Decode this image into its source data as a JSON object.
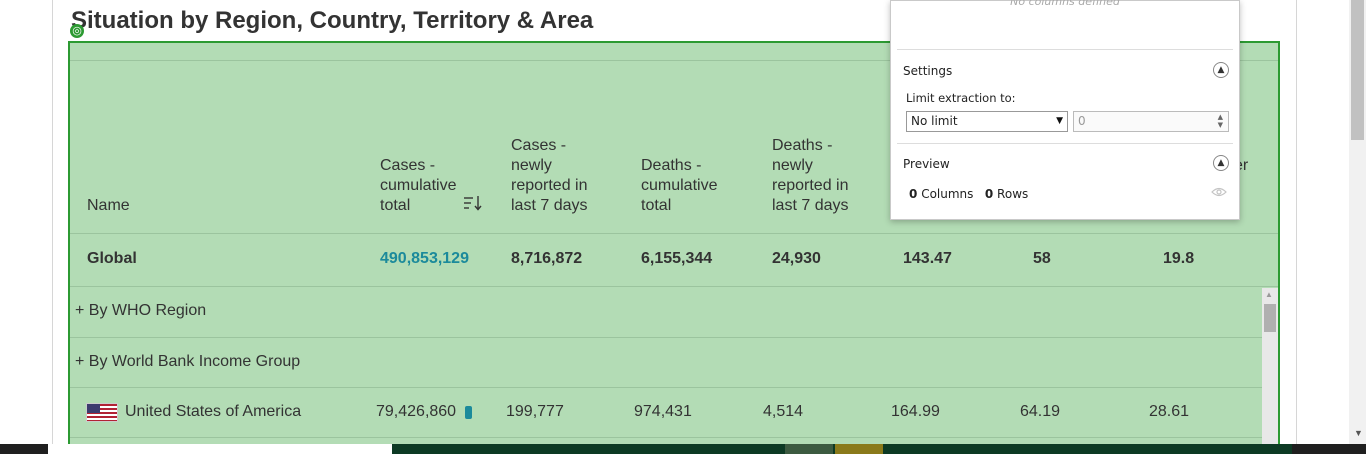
{
  "section_title": "Situation by Region, Country, Territory & Area",
  "table": {
    "columns": [
      {
        "label": "Name"
      },
      {
        "label": "Cases - cumulative total"
      },
      {
        "label": "Cases - newly reported in last 7 days"
      },
      {
        "label": "Deaths - cumulative total"
      },
      {
        "label": "Deaths - newly reported in last 7 days"
      },
      {
        "label": "er"
      }
    ],
    "global": {
      "name": "Global",
      "cases_total": "490,853,129",
      "cases_7d": "8,716,872",
      "deaths_total": "6,155,344",
      "deaths_7d": "24,930",
      "col6": "143.47",
      "col7": "58",
      "col8": "19.8"
    },
    "groups": [
      {
        "label": "+ By WHO Region"
      },
      {
        "label": "+ By World Bank Income Group"
      }
    ],
    "rows": [
      {
        "name": "United States of America",
        "cases_total": "79,426,860",
        "cases_7d": "199,777",
        "deaths_total": "974,431",
        "deaths_7d": "4,514",
        "col6": "164.99",
        "col7": "64.19",
        "col8": "28.61"
      }
    ]
  },
  "panel": {
    "empty_message": "No columns defined",
    "settings_title": "Settings",
    "limit_label": "Limit extraction to:",
    "limit_value": "No limit",
    "limit_count": "0",
    "preview_title": "Preview",
    "columns_count": "0",
    "columns_label": "Columns",
    "rows_count": "0",
    "rows_label": "Rows"
  },
  "colors": {
    "overlay_fill": "#b3dcb5",
    "overlay_border": "#2c9a32",
    "link": "#1b8a9b"
  }
}
